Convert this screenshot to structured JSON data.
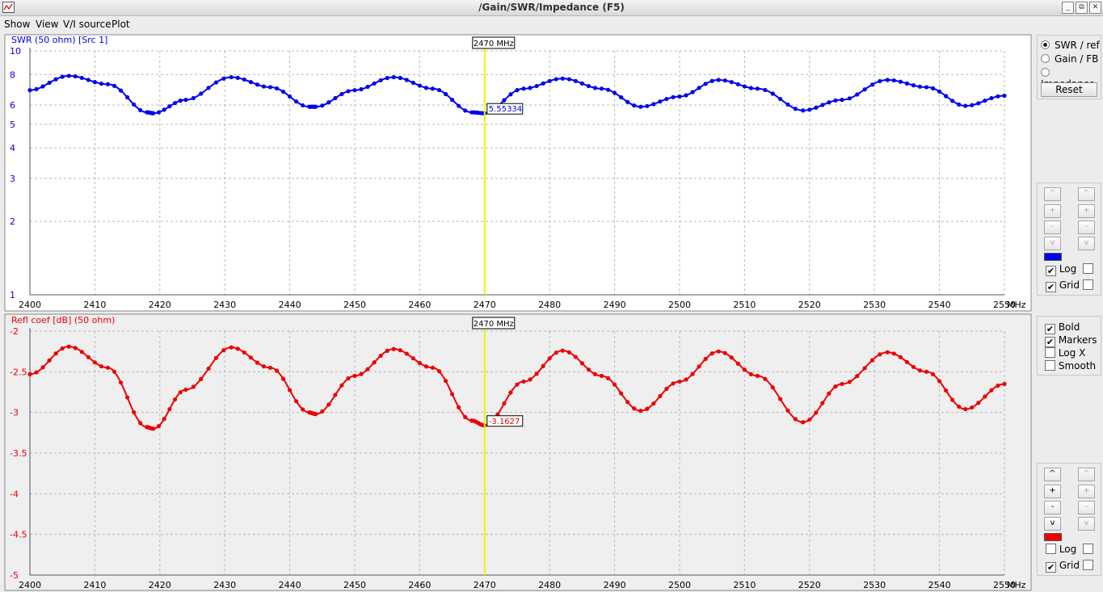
{
  "window": {
    "title": "/Gain/SWR/Impedance (F5)",
    "buttons": [
      "_",
      "⧉",
      "✕"
    ]
  },
  "menu": [
    "Show",
    "View",
    "V/I source",
    "Plot"
  ],
  "side_top": {
    "radios": [
      {
        "label": "SWR / ref",
        "checked": true
      },
      {
        "label": "Gain / FB",
        "checked": false
      },
      {
        "label": "Impedance",
        "checked": false
      }
    ],
    "reset_label": "Reset"
  },
  "side_scale1": {
    "buttons": [
      "^",
      "+",
      "-",
      "v"
    ],
    "color": "#0000ee",
    "log_label": "Log",
    "log_checked": true,
    "grid_label": "Grid",
    "grid_checked": true
  },
  "side_options": [
    {
      "label": "Bold",
      "checked": true
    },
    {
      "label": "Markers",
      "checked": true
    },
    {
      "label": "Log X",
      "checked": false
    },
    {
      "label": "Smooth",
      "checked": false
    }
  ],
  "side_scale2": {
    "buttons": [
      "^",
      "+",
      "-",
      "v"
    ],
    "color": "#ee0000",
    "log_label": "Log",
    "log_checked": false,
    "grid_label": "Grid",
    "grid_checked": true
  },
  "chart_data": [
    {
      "type": "line",
      "title": "SWR (50 ohm) [Src 1]",
      "color": "#0000ee",
      "yscale": "log",
      "ylim": [
        1,
        10
      ],
      "yticks": [
        "1",
        "2",
        "3",
        "4",
        "5",
        "6",
        "8",
        "10"
      ],
      "xlim": [
        2400,
        2550
      ],
      "xticks": [
        "2400",
        "2410",
        "2420",
        "2430",
        "2440",
        "2450",
        "2460",
        "2470",
        "2480",
        "2490",
        "2500",
        "2510",
        "2520",
        "2530",
        "2540",
        "2550"
      ],
      "xunit": "MHz",
      "cursor": {
        "x": 2470,
        "label": "2470 MHz",
        "value_label": "5.55334"
      },
      "grid": true,
      "x": [
        2400,
        2406,
        2412,
        2418,
        2419,
        2424,
        2431,
        2437,
        2443,
        2444,
        2450,
        2456,
        2462,
        2468,
        2470,
        2476,
        2482,
        2488,
        2494,
        2500,
        2506,
        2512,
        2519,
        2525,
        2532,
        2538,
        2544,
        2550
      ],
      "values": [
        6.9,
        7.9,
        7.3,
        5.6,
        5.55,
        6.3,
        7.8,
        7.1,
        5.9,
        5.9,
        6.9,
        7.8,
        7.0,
        5.6,
        5.55,
        7.0,
        7.7,
        7.0,
        5.9,
        6.5,
        7.6,
        7.0,
        5.7,
        6.3,
        7.6,
        7.1,
        5.95,
        6.55
      ]
    },
    {
      "type": "line",
      "title": "Refl coef [dB] (50 ohm)",
      "color": "#ee0000",
      "ylim": [
        -5,
        -2
      ],
      "yticks": [
        "-5",
        "-4.5",
        "-4",
        "-3.5",
        "-3",
        "-2.5",
        "-2"
      ],
      "xlim": [
        2400,
        2550
      ],
      "xticks": [
        "2400",
        "2410",
        "2420",
        "2430",
        "2440",
        "2450",
        "2460",
        "2470",
        "2480",
        "2490",
        "2500",
        "2510",
        "2520",
        "2530",
        "2540",
        "2550"
      ],
      "xunit": "MHz",
      "cursor": {
        "x": 2470,
        "label": "2470 MHz",
        "value_label": "-3.1627"
      },
      "grid": true,
      "x": [
        2400,
        2406,
        2412,
        2418,
        2419,
        2424,
        2431,
        2437,
        2443,
        2444,
        2450,
        2456,
        2462,
        2468,
        2470,
        2476,
        2482,
        2488,
        2494,
        2500,
        2506,
        2512,
        2519,
        2525,
        2532,
        2538,
        2544,
        2550
      ],
      "values": [
        -2.53,
        -2.19,
        -2.45,
        -3.18,
        -3.2,
        -2.72,
        -2.2,
        -2.45,
        -3.0,
        -3.02,
        -2.55,
        -2.22,
        -2.45,
        -3.1,
        -3.16,
        -2.62,
        -2.24,
        -2.55,
        -2.98,
        -2.62,
        -2.25,
        -2.55,
        -3.12,
        -2.65,
        -2.26,
        -2.5,
        -2.96,
        -2.65
      ]
    }
  ]
}
